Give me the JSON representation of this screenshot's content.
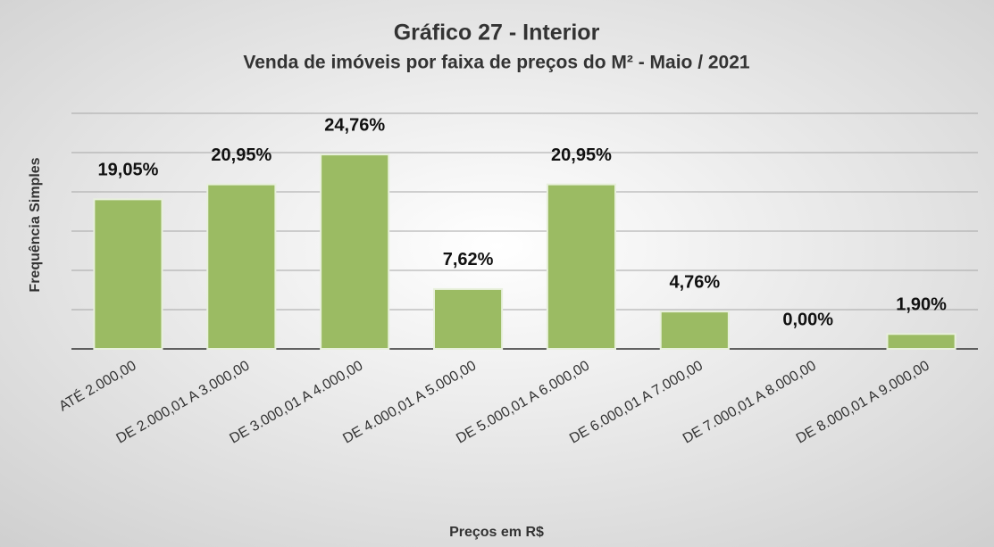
{
  "chart_data": {
    "type": "bar",
    "title": "Gráfico 27 - Interior",
    "subtitle": "Venda de imóveis por faixa de preços do M² - Maio / 2021",
    "x_label": "Preços em R$",
    "y_label": "Frequência Simples",
    "categories": [
      "ATÉ 2.000,00",
      "DE 2.000,01 A 3.000,00",
      "DE 3.000,01 A 4.000,00",
      "DE 4.000,01 A 5.000,00",
      "DE 5.000,01 A 6.000,00",
      "DE 6.000,01 A 7.000,00",
      "DE 7.000,01 A 8.000,00",
      "DE 8.000,01 A 9.000,00"
    ],
    "values": [
      19.05,
      20.95,
      24.76,
      7.62,
      20.95,
      4.76,
      0,
      1.9
    ],
    "value_labels": [
      "19,05%",
      "20,95%",
      "24,76%",
      "7,62%",
      "20,95%",
      "4,76%",
      "0,00%",
      "1,90%"
    ],
    "color": "#9bbb63",
    "ylim": [
      0,
      30
    ],
    "yticks": [
      0,
      5,
      10,
      15,
      20,
      25,
      30
    ],
    "grid": true
  }
}
